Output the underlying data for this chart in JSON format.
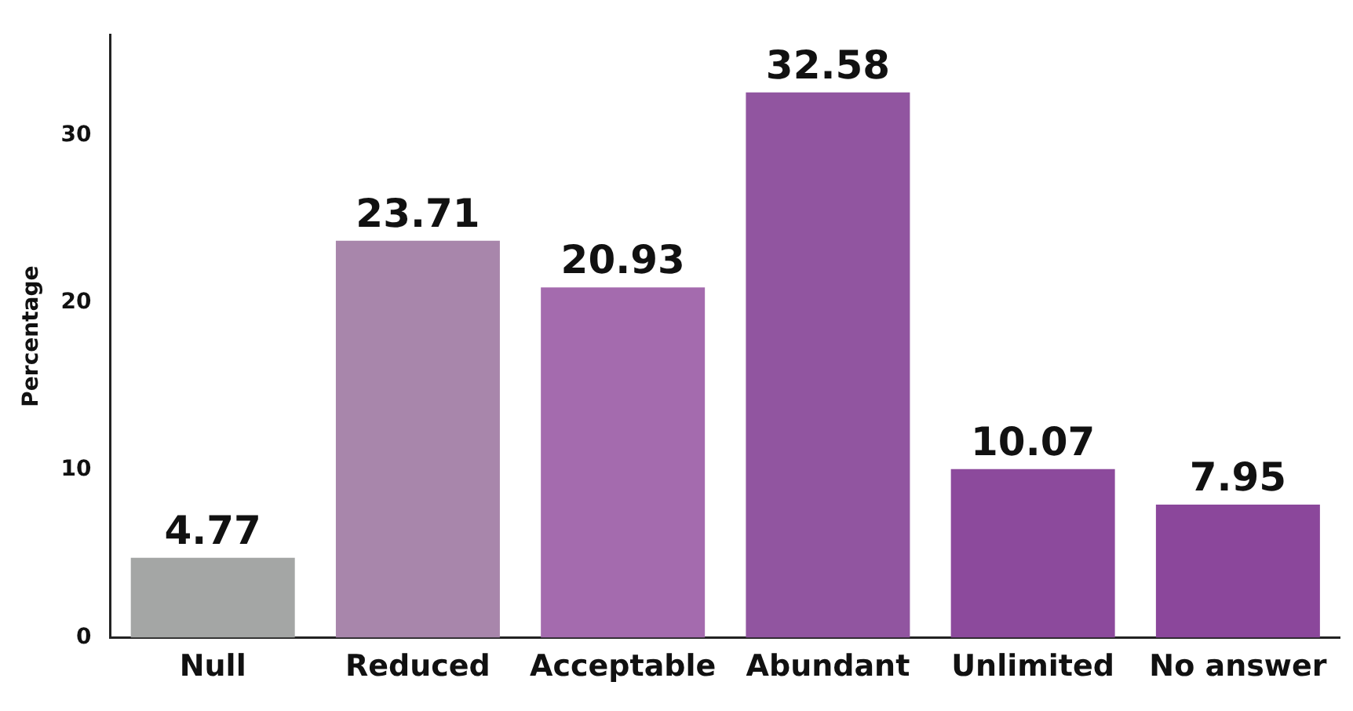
{
  "chart_data": {
    "type": "bar",
    "ylabel": "Percentage",
    "categories": [
      "Null",
      "Reduced",
      "Acceptable",
      "Abundant",
      "Unlimited",
      "No answer"
    ],
    "values": [
      4.77,
      23.71,
      20.93,
      32.58,
      10.07,
      7.95
    ],
    "colors": [
      "#a4a6a5",
      "#a886ab",
      "#a46bae",
      "#9155a0",
      "#8c4a9c",
      "#8b479b"
    ],
    "ylim": [
      0,
      36
    ],
    "yticks": [
      0,
      10,
      20,
      30
    ],
    "grid": false,
    "data_labels": true
  }
}
